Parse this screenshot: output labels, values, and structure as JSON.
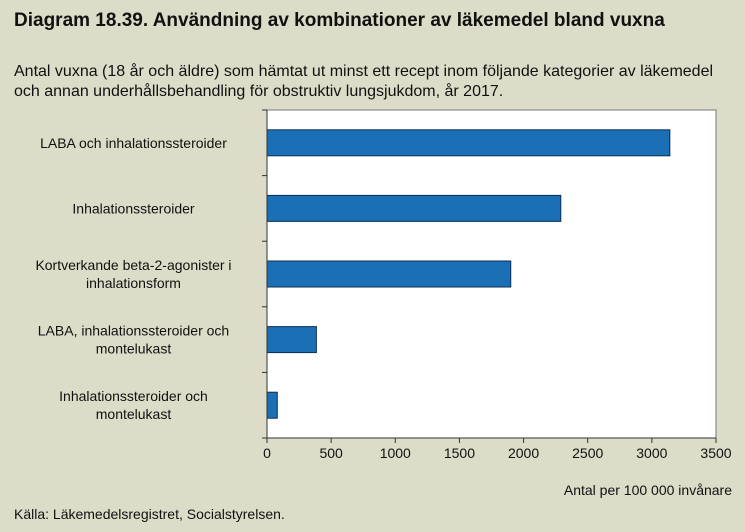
{
  "title": "Diagram 18.39. Användning av kombinationer av läkemedel bland vuxna",
  "subtitle": "Antal vuxna (18 år och äldre) som hämtat ut minst ett recept inom följande kategorier av läkemedel och annan underhållsbehandling för obstruktiv lungsjukdom, år 2017.",
  "source": "Källa: Läkemedelsregistret, Socialstyrelsen.",
  "colors": {
    "bar": "#1a6fb5",
    "bar_stroke": "#0d2f55",
    "background": "#dcdcc8",
    "plot_bg": "#ffffff"
  },
  "chart_data": {
    "type": "bar",
    "orientation": "horizontal",
    "categories": [
      "LABA och inhalationssteroider",
      "Inhalationssteroider",
      "Kortverkande beta-2-agonister i inhalationsform",
      "LABA, inhalationssteroider och montelukast",
      "Inhalationssteroider och montelukast"
    ],
    "category_lines": [
      [
        "LABA och inhalationssteroider"
      ],
      [
        "Inhalationssteroider"
      ],
      [
        "Kortverkande beta-2-agonister i",
        "inhalationsform"
      ],
      [
        "LABA, inhalationssteroider och",
        "montelukast"
      ],
      [
        "Inhalationssteroider och",
        "montelukast"
      ]
    ],
    "values": [
      3140,
      2290,
      1900,
      385,
      80
    ],
    "xlim": [
      0,
      3500
    ],
    "xticks": [
      0,
      500,
      1000,
      1500,
      2000,
      2500,
      3000,
      3500
    ],
    "xlabel": "Antal per 100 000 invånare",
    "ylabel": "",
    "grid": false,
    "legend": "none"
  }
}
